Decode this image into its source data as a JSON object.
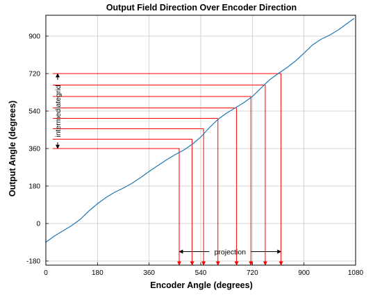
{
  "chart_data": {
    "type": "line",
    "title": "Output Field Direction Over Encoder Direction",
    "xlabel": "Encoder Angle (degrees)",
    "ylabel": "Output Angle (degrees)",
    "xlim": [
      0,
      1080
    ],
    "ylim": [
      -200,
      1000
    ],
    "xticks": [
      0,
      180,
      360,
      540,
      720,
      900,
      1080
    ],
    "yticks": [
      -180,
      0,
      180,
      360,
      540,
      720,
      900
    ],
    "grid": true,
    "series": [
      {
        "color": "#1f77b4",
        "x": [
          0,
          30,
          60,
          90,
          120,
          150,
          180,
          210,
          240,
          270,
          300,
          330,
          360,
          390,
          420,
          450,
          480,
          510,
          540,
          570,
          600,
          630,
          660,
          690,
          720,
          750,
          780,
          810,
          840,
          870,
          900,
          930,
          960,
          990,
          1020,
          1050,
          1075
        ],
        "y": [
          -90,
          -60,
          -35,
          -10,
          20,
          60,
          95,
          125,
          150,
          170,
          193,
          220,
          250,
          278,
          305,
          330,
          352,
          380,
          415,
          460,
          500,
          530,
          555,
          580,
          610,
          650,
          690,
          720,
          748,
          780,
          818,
          858,
          885,
          905,
          930,
          960,
          985
        ]
      }
    ],
    "annotations": {
      "color": "#ff0000",
      "intermediate_label": "intermediategrid",
      "projection_label": "projection",
      "levels": [
        {
          "y": 360,
          "x": 465
        },
        {
          "y": 405,
          "x": 510
        },
        {
          "y": 455,
          "x": 550
        },
        {
          "y": 505,
          "x": 600
        },
        {
          "y": 555,
          "x": 665
        },
        {
          "y": 610,
          "x": 715
        },
        {
          "y": 665,
          "x": 765
        },
        {
          "y": 720,
          "x": 820
        }
      ],
      "bracket_y": [
        360,
        720
      ],
      "projection_x": [
        465,
        820
      ],
      "projection_arrow_y": -135
    }
  }
}
